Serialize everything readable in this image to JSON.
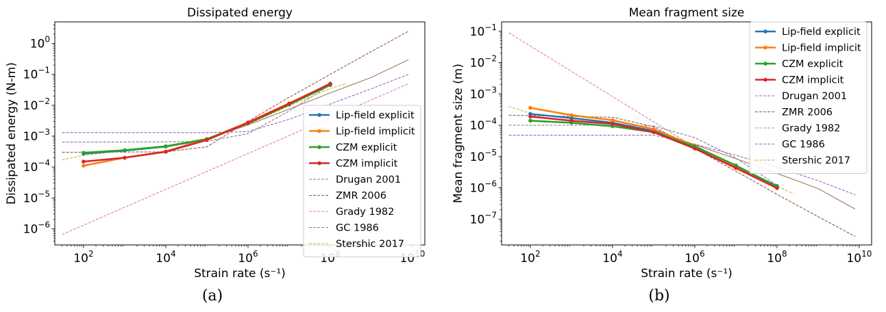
{
  "captions": {
    "a": "(a)",
    "b": "(b)"
  },
  "colors": {
    "Lip-field explicit": "#1f77b4",
    "Lip-field implicit": "#ff7f0e",
    "CZM explicit": "#2ca02c",
    "CZM implicit": "#d62728",
    "Drugan 2001": "#9467bd",
    "ZMR 2006": "#8c564b",
    "Grady 1982": "#e377c2",
    "GC 1986": "#7f7f7f",
    "Stershic 2017": "#bcbd22",
    "extra": "#a0766a"
  },
  "chart_data": [
    {
      "type": "line",
      "title": "Dissipated energy",
      "xlabel": "Strain rate (s⁻¹)",
      "ylabel": "Dissipated energy (N-m)",
      "xscale": "log",
      "yscale": "log",
      "xlim": [
        20,
        20000000000.0
      ],
      "ylim": [
        3e-07,
        5
      ],
      "xticks": [
        {
          "v": 100,
          "base": "10",
          "exp": "2"
        },
        {
          "v": 10000,
          "base": "10",
          "exp": "4"
        },
        {
          "v": 1000000,
          "base": "10",
          "exp": "6"
        },
        {
          "v": 100000000,
          "base": "10",
          "exp": "8"
        },
        {
          "v": 10000000000,
          "base": "10",
          "exp": "10"
        }
      ],
      "yticks": [
        {
          "v": 1e-06,
          "base": "10",
          "exp": "−6"
        },
        {
          "v": 1e-05,
          "base": "10",
          "exp": "−5"
        },
        {
          "v": 0.0001,
          "base": "10",
          "exp": "−4"
        },
        {
          "v": 0.001,
          "base": "10",
          "exp": "−3"
        },
        {
          "v": 0.01,
          "base": "10",
          "exp": "−2"
        },
        {
          "v": 0.1,
          "base": "10",
          "exp": "−1"
        },
        {
          "v": 1,
          "base": "10",
          "exp": "0"
        }
      ],
      "legend_position": "lower-right",
      "series": [
        {
          "name": "Lip-field explicit",
          "style": "marker",
          "x": [
            100,
            1000,
            10000,
            100000,
            1000000,
            10000000,
            100000000
          ],
          "y": [
            0.00027,
            0.00034,
            0.00046,
            0.00078,
            0.0027,
            0.011,
            0.047
          ]
        },
        {
          "name": "Lip-field implicit",
          "style": "marker",
          "x": [
            100,
            1000,
            10000,
            100000,
            1000000,
            10000000,
            100000000
          ],
          "y": [
            0.00011,
            0.0002,
            0.00032,
            0.0008,
            0.0028,
            0.0115,
            0.049
          ]
        },
        {
          "name": "CZM explicit",
          "style": "marker",
          "x": [
            100,
            1000,
            10000,
            100000,
            1000000,
            10000000,
            100000000
          ],
          "y": [
            0.00029,
            0.00035,
            0.00047,
            0.0008,
            0.0026,
            0.0105,
            0.045
          ]
        },
        {
          "name": "CZM implicit",
          "style": "marker",
          "x": [
            100,
            1000,
            10000,
            100000,
            1000000,
            10000000,
            100000000
          ],
          "y": [
            0.00015,
            0.0002,
            0.00031,
            0.00075,
            0.0027,
            0.0112,
            0.05
          ]
        },
        {
          "name": "Drugan 2001",
          "style": "dashed",
          "x": [
            30,
            100000,
            1000000,
            10000000,
            100000000,
            1000000000,
            8000000000.0
          ],
          "y": [
            0.0013,
            0.0013,
            0.0014,
            0.0035,
            0.011,
            0.034,
            0.1
          ]
        },
        {
          "name": "ZMR 2006",
          "style": "dashed",
          "x": [
            30,
            10000,
            100000,
            1000000,
            10000000,
            100000000,
            1000000000,
            8000000000.0
          ],
          "y": [
            0.0003,
            0.00031,
            0.00045,
            0.003,
            0.018,
            0.1,
            0.55,
            2.5
          ]
        },
        {
          "name": "Grady 1982",
          "style": "dashed",
          "x": [
            30,
            8000000000.0
          ],
          "y": [
            6.5e-07,
            0.05
          ]
        },
        {
          "name": "GC 1986",
          "style": "dashed",
          "x": [
            30,
            10000,
            100000,
            1000000,
            10000000,
            100000000
          ],
          "y": [
            0.00064,
            0.00065,
            0.00068,
            0.0012,
            0.0065,
            0.045
          ]
        },
        {
          "name": "Stershic 2017",
          "style": "dashed",
          "x": [
            30,
            100,
            1000,
            10000,
            100000,
            1000000,
            10000000,
            100000000,
            250000000
          ],
          "y": [
            0.00017,
            0.00024,
            0.00034,
            0.00049,
            0.00085,
            0.0024,
            0.0095,
            0.035,
            0.05
          ]
        },
        {
          "name": "",
          "style": "solid-thin",
          "x": [
            100000,
            1000000,
            10000000,
            100000000,
            1000000000,
            8000000000.0
          ],
          "y": [
            0.0008,
            0.0023,
            0.0075,
            0.025,
            0.08,
            0.3
          ]
        }
      ]
    },
    {
      "type": "line",
      "title": "Mean fragment size",
      "xlabel": "Strain rate (s⁻¹)",
      "ylabel": "Mean fragment size (m)",
      "xscale": "log",
      "yscale": "log",
      "xlim": [
        20,
        20000000000.0
      ],
      "ylim": [
        1.5e-08,
        0.2
      ],
      "xticks": [
        {
          "v": 100,
          "base": "10",
          "exp": "2"
        },
        {
          "v": 10000,
          "base": "10",
          "exp": "4"
        },
        {
          "v": 1000000,
          "base": "10",
          "exp": "6"
        },
        {
          "v": 100000000,
          "base": "10",
          "exp": "8"
        },
        {
          "v": 10000000000,
          "base": "10",
          "exp": "10"
        }
      ],
      "yticks": [
        {
          "v": 1e-07,
          "base": "10",
          "exp": "−7"
        },
        {
          "v": 1e-06,
          "base": "10",
          "exp": "−6"
        },
        {
          "v": 1e-05,
          "base": "10",
          "exp": "−5"
        },
        {
          "v": 0.0001,
          "base": "10",
          "exp": "−4"
        },
        {
          "v": 0.001,
          "base": "10",
          "exp": "−3"
        },
        {
          "v": 0.01,
          "base": "10",
          "exp": "−2"
        },
        {
          "v": 0.1,
          "base": "10",
          "exp": "−1"
        }
      ],
      "legend_position": "upper-right",
      "series": [
        {
          "name": "Lip-field explicit",
          "style": "marker",
          "x": [
            100,
            1000,
            10000,
            100000,
            1000000,
            10000000,
            100000000
          ],
          "y": [
            0.00023,
            0.00017,
            0.00012,
            6.5e-05,
            1.95e-05,
            4.8e-06,
            1.15e-06
          ]
        },
        {
          "name": "Lip-field implicit",
          "style": "marker",
          "x": [
            100,
            1000,
            10000,
            100000,
            1000000,
            10000000,
            100000000
          ],
          "y": [
            0.00036,
            0.00021,
            0.000145,
            7.5e-05,
            2.2e-05,
            4.5e-06,
            1.05e-06
          ]
        },
        {
          "name": "CZM explicit",
          "style": "marker",
          "x": [
            100,
            1000,
            10000,
            100000,
            1000000,
            10000000,
            100000000
          ],
          "y": [
            0.00014,
            0.00012,
            9.3e-05,
            6e-05,
            2.1e-05,
            5.2e-06,
            1.1e-06
          ]
        },
        {
          "name": "CZM implicit",
          "style": "marker",
          "x": [
            100,
            1000,
            10000,
            100000,
            1000000,
            10000000,
            100000000
          ],
          "y": [
            0.00019,
            0.00014,
            0.00011,
            6e-05,
            1.8e-05,
            4.3e-06,
            9.8e-07
          ]
        },
        {
          "name": "Drugan 2001",
          "style": "dashed",
          "x": [
            30,
            100000,
            1000000,
            10000000,
            100000000,
            1000000000,
            8000000000.0
          ],
          "y": [
            4.8e-05,
            4.8e-05,
            2.5e-05,
            1.1e-05,
            4.6e-06,
            1.7e-06,
            6e-07
          ]
        },
        {
          "name": "ZMR 2006",
          "style": "dashed",
          "x": [
            30,
            10000,
            100000,
            1000000,
            10000000,
            100000000,
            1000000000,
            8000000000.0
          ],
          "y": [
            0.00021,
            0.00018,
            9e-05,
            1.8e-05,
            3.4e-06,
            6.2e-07,
            1.2e-07,
            2.8e-08
          ]
        },
        {
          "name": "Grady 1982",
          "style": "dashed",
          "x": [
            30,
            1000000
          ],
          "y": [
            0.09,
            2e-05
          ]
        },
        {
          "name": "GC 1986",
          "style": "dashed",
          "x": [
            30,
            10000,
            100000,
            1000000,
            10000000,
            100000000
          ],
          "y": [
            0.0001,
            0.0001,
            9.5e-05,
            4e-05,
            9e-06,
            1.2e-06
          ]
        },
        {
          "name": "Stershic 2017",
          "style": "dashed",
          "x": [
            30,
            100,
            1000,
            10000,
            100000,
            1000000,
            10000000,
            100000000,
            250000000
          ],
          "y": [
            0.0004,
            0.00024,
            0.00016,
            0.00012,
            7e-05,
            2.2e-05,
            4.8e-06,
            1.15e-06,
            6.5e-07
          ]
        },
        {
          "name": "",
          "style": "solid-thin",
          "x": [
            100000,
            1000000,
            10000000,
            100000000,
            1000000000,
            8000000000.0
          ],
          "y": [
            7e-05,
            2.4e-05,
            8.5e-06,
            2.9e-06,
            9.5e-07,
            2.1e-07
          ]
        }
      ]
    }
  ]
}
